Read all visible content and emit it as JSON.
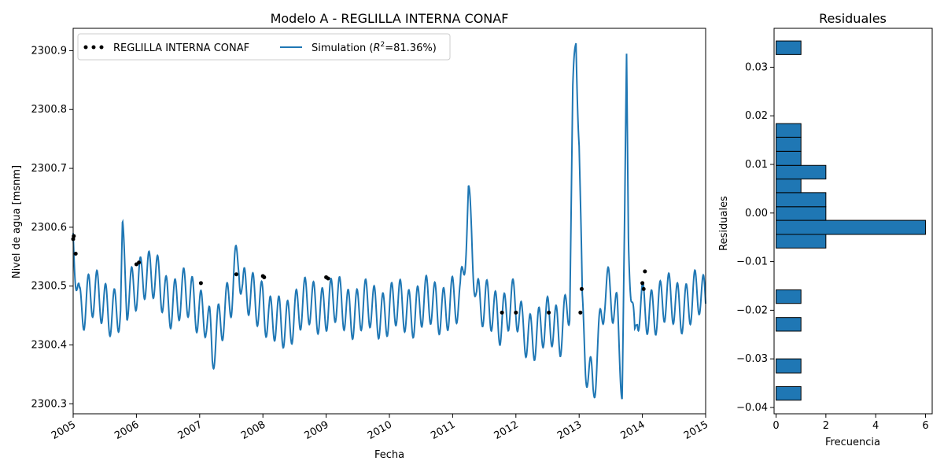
{
  "chart_data": [
    {
      "type": "line",
      "title": "Modelo A - REGLILLA INTERNA CONAF",
      "xlabel": "Fecha",
      "ylabel": "Nivel de agua [msnm]",
      "xlim": [
        2005,
        2015
      ],
      "ylim": [
        2300.283,
        2300.938
      ],
      "x_ticks": [
        "2005",
        "2006",
        "2007",
        "2008",
        "2009",
        "2010",
        "2011",
        "2012",
        "2013",
        "2014",
        "2015"
      ],
      "y_ticks": [
        "2300.3",
        "2300.4",
        "2300.5",
        "2300.6",
        "2300.7",
        "2300.8",
        "2300.9"
      ],
      "legend_position": "top-left",
      "legend": {
        "observed": "REGLILLA INTERNA CONAF",
        "simulation_prefix": "Simulation (",
        "simulation_r": "R",
        "simulation_sup": "2",
        "simulation_suffix": "=81.36%)"
      },
      "colors": {
        "simulation": "#1f77b4",
        "observed": "#000000"
      },
      "series": [
        {
          "name": "REGLILLA INTERNA CONAF",
          "kind": "scatter",
          "x": [
            2005.0,
            2005.01,
            2005.04,
            2006.0,
            2006.04,
            2007.02,
            2007.58,
            2008.0,
            2008.02,
            2009.0,
            2009.03,
            2011.78,
            2012.0,
            2012.52,
            2013.02,
            2013.04,
            2014.0,
            2014.02,
            2014.04
          ],
          "y": [
            2300.58,
            2300.585,
            2300.555,
            2300.537,
            2300.54,
            2300.505,
            2300.52,
            2300.517,
            2300.515,
            2300.515,
            2300.513,
            2300.455,
            2300.455,
            2300.455,
            2300.455,
            2300.495,
            2300.505,
            2300.495,
            2300.525
          ]
        },
        {
          "name": "Simulation",
          "kind": "line",
          "x": [
            2005.0,
            2005.1,
            2005.25,
            2005.5,
            2005.75,
            2005.78,
            2005.85,
            2006.1,
            2006.5,
            2006.75,
            2007.1,
            2007.16,
            2007.2,
            2007.5,
            2007.55,
            2007.62,
            2007.68,
            2008.0,
            2008.1,
            2008.3,
            2008.5,
            2009.0,
            2009.5,
            2010.0,
            2010.5,
            2011.0,
            2011.12,
            2011.22,
            2011.25,
            2011.3,
            2011.38,
            2011.5,
            2011.75,
            2011.9,
            2012.0,
            2012.1,
            2012.3,
            2012.5,
            2012.7,
            2012.85,
            2012.9,
            2012.95,
            2013.0,
            2013.05,
            2013.1,
            2013.15,
            2013.22,
            2013.3,
            2013.4,
            2013.5,
            2013.6,
            2013.68,
            2013.72,
            2013.75,
            2013.78,
            2013.82,
            2013.88,
            2013.92,
            2014.0,
            2014.3,
            2014.6,
            2014.9,
            2015.0
          ],
          "y": [
            2300.59,
            2300.47,
            2300.48,
            2300.47,
            2300.46,
            2300.565,
            2300.47,
            2300.53,
            2300.48,
            2300.48,
            2300.46,
            2300.42,
            2300.38,
            2300.5,
            2300.53,
            2300.55,
            2300.48,
            2300.48,
            2300.44,
            2300.43,
            2300.46,
            2300.47,
            2300.46,
            2300.46,
            2300.465,
            2300.47,
            2300.46,
            2300.6,
            2300.65,
            2300.6,
            2300.48,
            2300.46,
            2300.45,
            2300.47,
            2300.46,
            2300.42,
            2300.425,
            2300.43,
            2300.43,
            2300.48,
            2300.8,
            2300.91,
            2300.75,
            2300.44,
            2300.38,
            2300.36,
            2300.34,
            2300.4,
            2300.48,
            2300.48,
            2300.45,
            2300.35,
            2300.6,
            2300.875,
            2300.6,
            2300.5,
            2300.38,
            2300.45,
            2300.46,
            2300.47,
            2300.47,
            2300.48,
            2300.47
          ]
        }
      ]
    },
    {
      "type": "bar",
      "orientation": "horizontal",
      "title": "Residuales",
      "xlabel": "Frecuencia",
      "ylabel": "Residuales",
      "xlim": [
        -0.08,
        6.27
      ],
      "ylim": [
        -0.0413,
        0.038
      ],
      "x_ticks": [
        "0",
        "2",
        "4",
        "6"
      ],
      "y_ticks": [
        "0.03",
        "0.02",
        "0.01",
        "0.00",
        "−0.01",
        "−0.02",
        "−0.03",
        "−0.04"
      ],
      "colors": {
        "bar": "#1f77b4",
        "edge": "#000000"
      },
      "bins": [
        {
          "from": -0.0385,
          "to": -0.0357,
          "count": 1
        },
        {
          "from": -0.0329,
          "to": -0.03,
          "count": 1
        },
        {
          "from": -0.0243,
          "to": -0.0215,
          "count": 1
        },
        {
          "from": -0.0186,
          "to": -0.0158,
          "count": 1
        },
        {
          "from": -0.0072,
          "to": -0.0044,
          "count": 2
        },
        {
          "from": -0.0044,
          "to": -0.0015,
          "count": 6
        },
        {
          "from": -0.0015,
          "to": 0.0013,
          "count": 2
        },
        {
          "from": 0.0013,
          "to": 0.0042,
          "count": 2
        },
        {
          "from": 0.0042,
          "to": 0.007,
          "count": 1
        },
        {
          "from": 0.007,
          "to": 0.0098,
          "count": 2
        },
        {
          "from": 0.0098,
          "to": 0.0127,
          "count": 1
        },
        {
          "from": 0.0127,
          "to": 0.0156,
          "count": 1
        },
        {
          "from": 0.0156,
          "to": 0.0184,
          "count": 1
        },
        {
          "from": 0.0326,
          "to": 0.0354,
          "count": 1
        }
      ]
    }
  ]
}
